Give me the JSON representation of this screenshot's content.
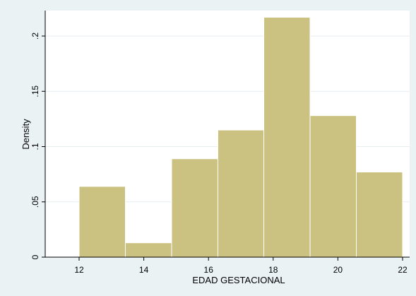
{
  "chart_data": {
    "type": "bar",
    "title": "",
    "xlabel": "EDAD GESTACIONAL",
    "ylabel": "Density",
    "xlim": [
      11.0,
      22.0
    ],
    "ylim": [
      0,
      0.225
    ],
    "x_ticks": [
      12,
      14,
      16,
      18,
      20,
      22
    ],
    "x_tick_labels": [
      "12",
      "14",
      "16",
      "18",
      "20",
      "22"
    ],
    "y_ticks": [
      0,
      0.05,
      0.1,
      0.15,
      0.2
    ],
    "y_tick_labels": [
      "0",
      ".05",
      ".1",
      ".15",
      ".2"
    ],
    "grid": true,
    "legend": "none",
    "bar_color": "#cbc282",
    "bar_edge_color": "#ffffff",
    "background_color": "#eaf2f3",
    "plot_background_color": "#ffffff",
    "bins": [
      {
        "x0": 12.0,
        "x1": 13.43,
        "value": 0.064
      },
      {
        "x0": 13.43,
        "x1": 14.86,
        "value": 0.013
      },
      {
        "x0": 14.86,
        "x1": 16.29,
        "value": 0.089
      },
      {
        "x0": 16.29,
        "x1": 17.71,
        "value": 0.115
      },
      {
        "x0": 17.71,
        "x1": 19.14,
        "value": 0.217
      },
      {
        "x0": 19.14,
        "x1": 20.57,
        "value": 0.128
      },
      {
        "x0": 20.57,
        "x1": 22.0,
        "value": 0.077
      }
    ]
  }
}
